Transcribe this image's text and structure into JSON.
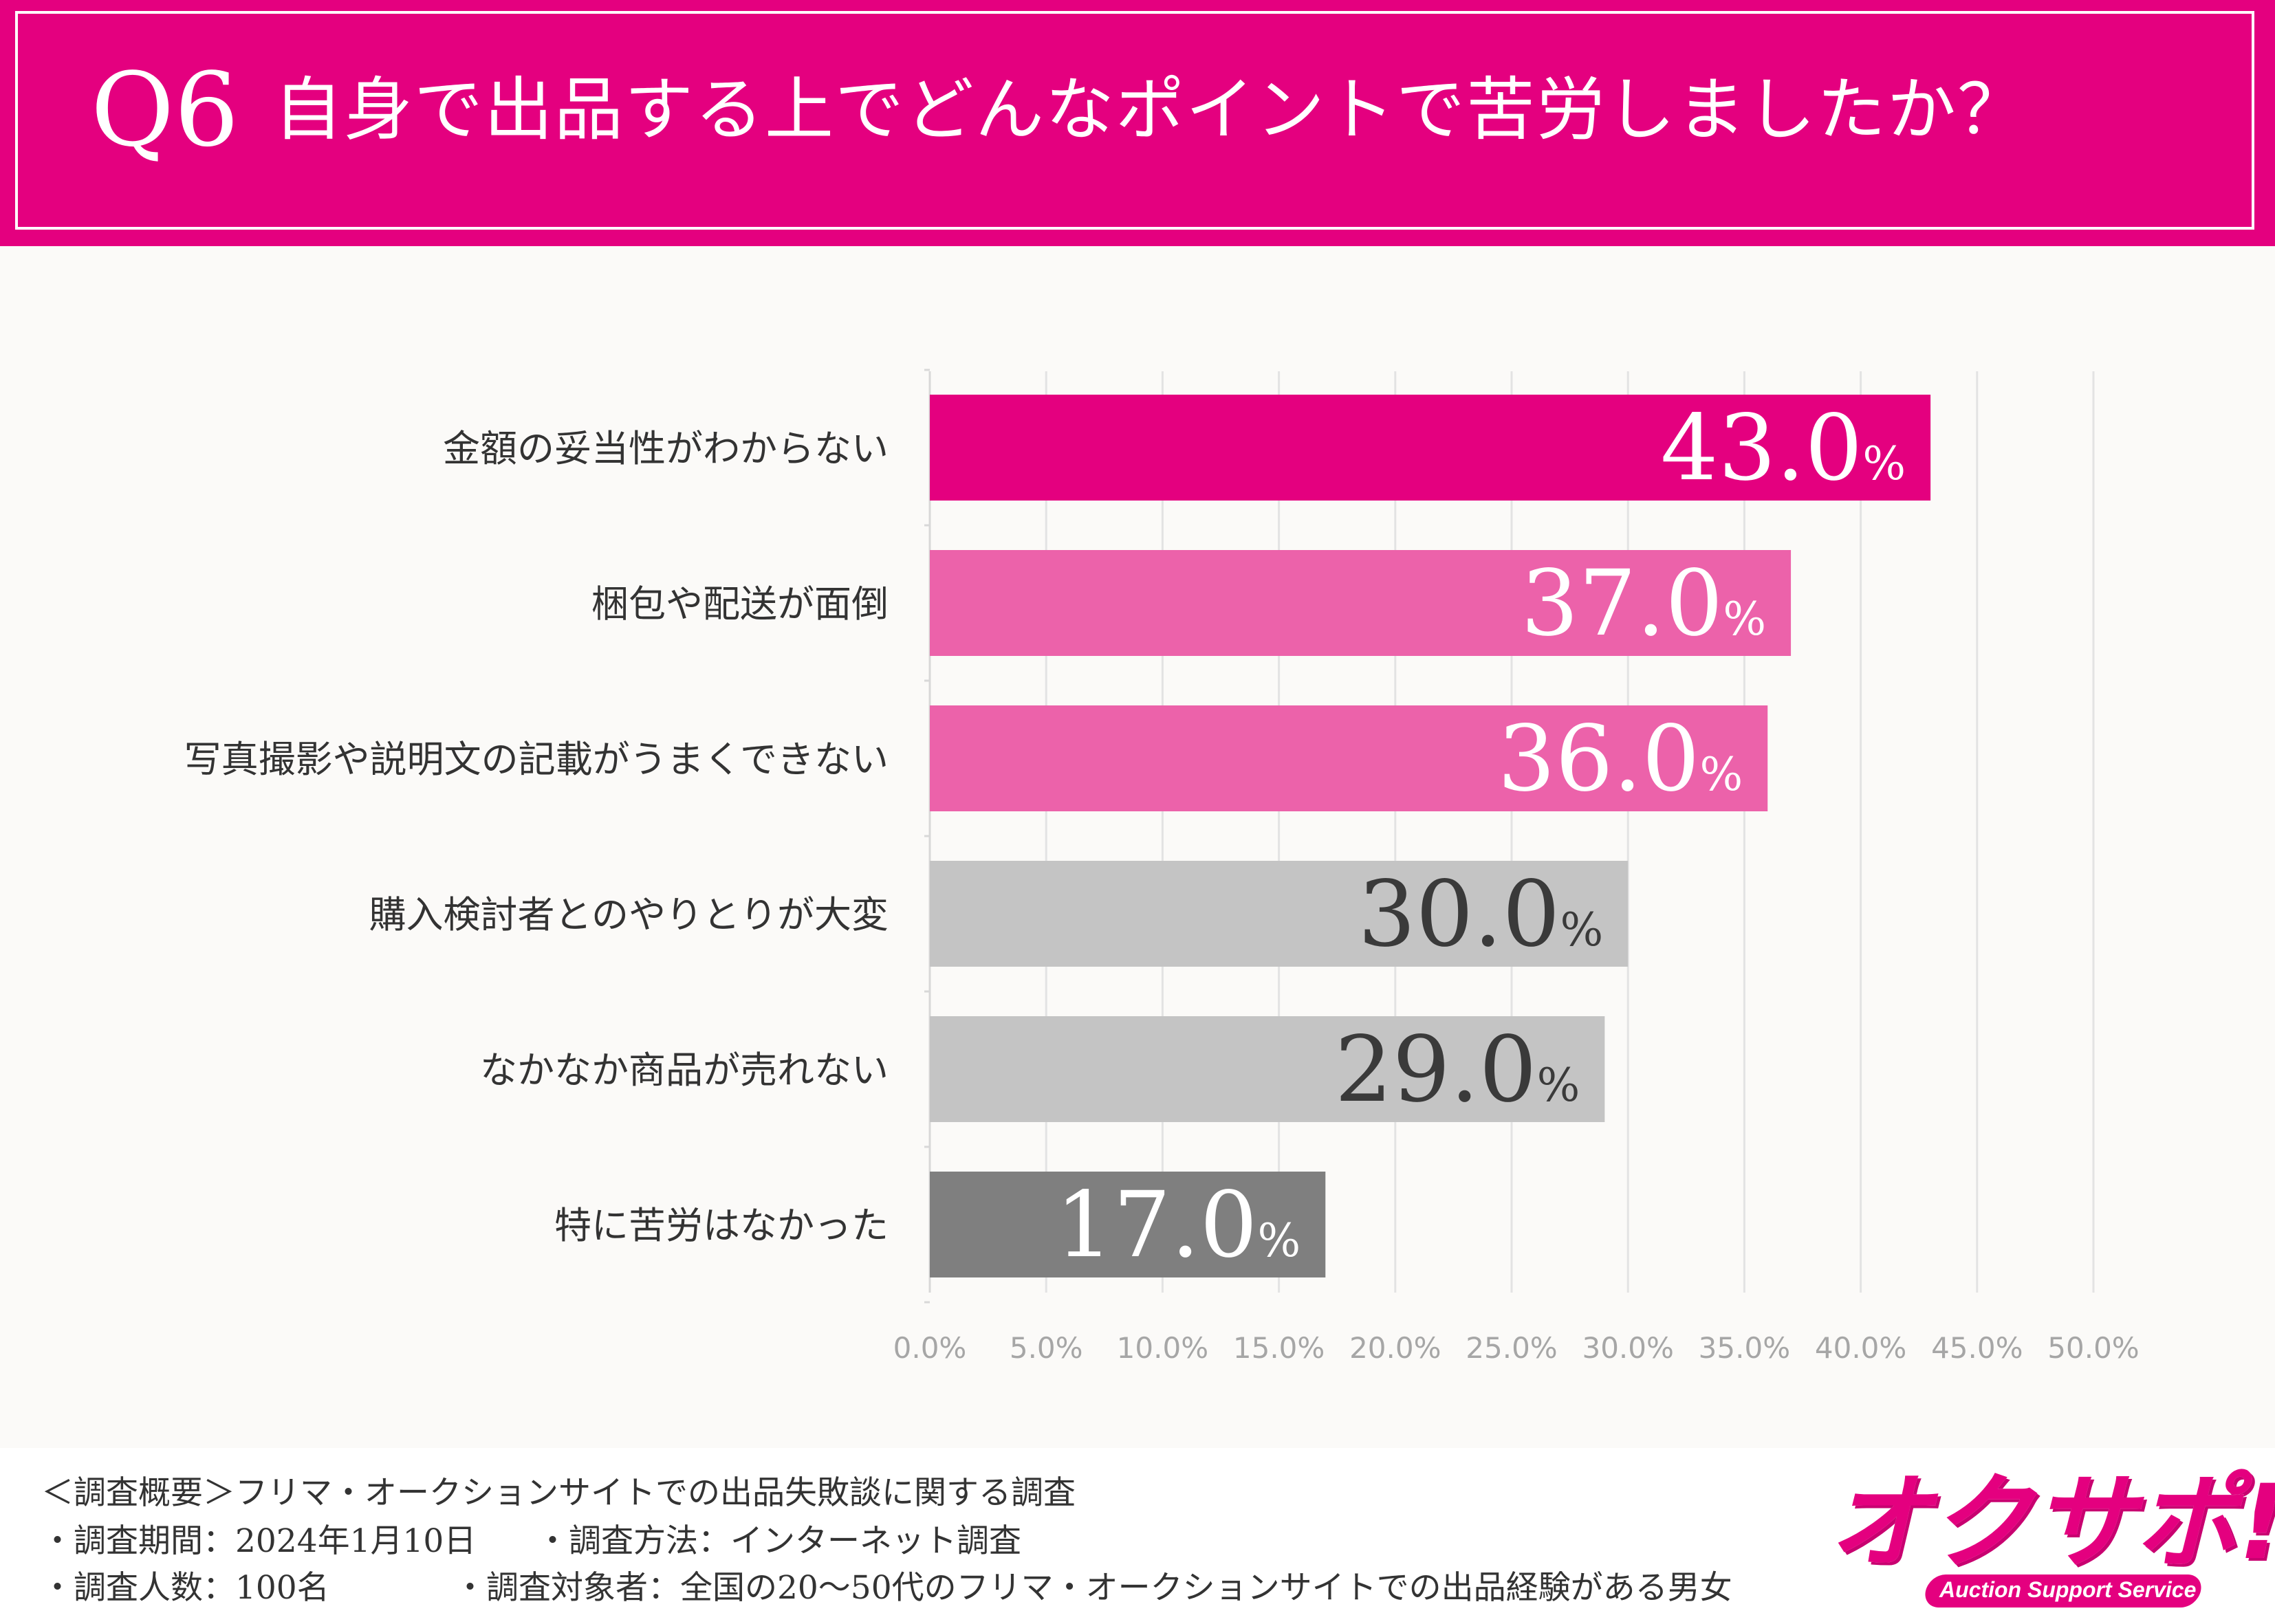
{
  "header": {
    "question_number": "Q6",
    "question_text": "自身で出品する上でどんなポイントで苦労しましたか？"
  },
  "chart_data": {
    "type": "bar",
    "orientation": "horizontal",
    "categories": [
      "金額の妥当性がわからない",
      "梱包や配送が面倒",
      "写真撮影や説明文の記載がうまくできない",
      "購入検討者とのやりとりが大変",
      "なかなか商品が売れない",
      "特に苦労はなかった"
    ],
    "values": [
      43.0,
      37.0,
      36.0,
      30.0,
      29.0,
      17.0
    ],
    "value_labels": [
      "43.0",
      "37.0",
      "36.0",
      "30.0",
      "29.0",
      "17.0"
    ],
    "value_unit": "%",
    "bar_colors": [
      "#e4007f",
      "#ec62aa",
      "#ec62aa",
      "#c4c4c4",
      "#c4c4c4",
      "#7f7f7f"
    ],
    "label_colors": [
      "#ffffff",
      "#ffffff",
      "#ffffff",
      "#3a3a3a",
      "#3a3a3a",
      "#ffffff"
    ],
    "xlim": [
      0,
      50
    ],
    "xticks": [
      "0.0%",
      "5.0%",
      "10.0%",
      "15.0%",
      "20.0%",
      "25.0%",
      "30.0%",
      "35.0%",
      "40.0%",
      "45.0%",
      "50.0%"
    ],
    "grid": true
  },
  "footer": {
    "summary": "＜調査概要＞フリマ・オークションサイトでの出品失敗談に関する調査",
    "period": "・調査期間：2024年1月10日",
    "method": "・調査方法：インターネット調査",
    "count": "・調査人数：100名",
    "target": "・調査対象者：全国の20～50代のフリマ・オークションサイトでの出品経験がある男女"
  },
  "logo": {
    "main": "オクサポ!",
    "sub": "Auction Support Service"
  },
  "colors": {
    "brand": "#e4007f",
    "background": "#fbfaf8"
  }
}
